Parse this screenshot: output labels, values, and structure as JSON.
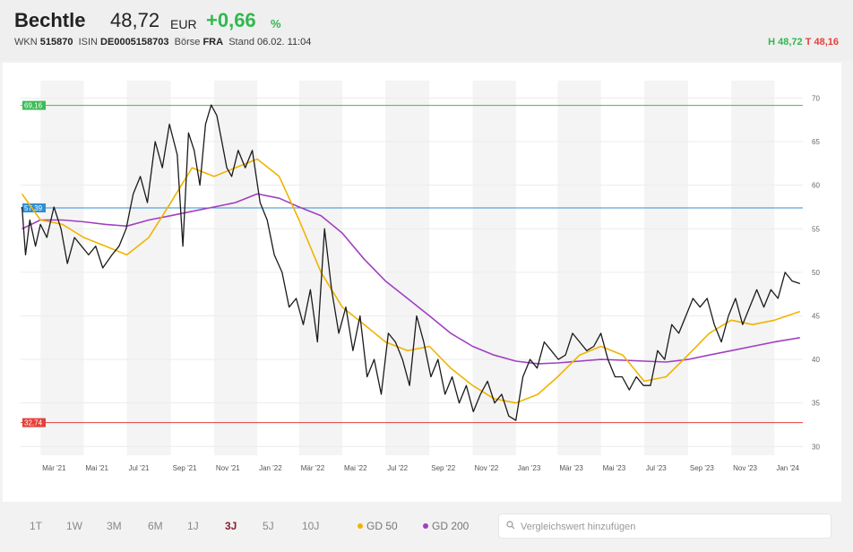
{
  "header": {
    "name": "Bechtle",
    "price": "48,72",
    "currency": "EUR",
    "change": "+0,66",
    "change_unit": "%",
    "wkn_label": "WKN",
    "wkn": "515870",
    "isin_label": "ISIN",
    "isin": "DE0005158703",
    "exchange_label": "Börse",
    "exchange": "FRA",
    "stand_label": "Stand",
    "stand": "06.02. 11:04",
    "high": "H 48,72",
    "low": "T 48,16",
    "colors": {
      "up": "#2fb84f",
      "down": "#e5403a"
    }
  },
  "toolbar": {
    "ranges": [
      "1T",
      "1W",
      "3M",
      "6M",
      "1J",
      "3J",
      "5J",
      "10J"
    ],
    "active_range": "3J",
    "gd50_label": "GD 50",
    "gd200_label": "GD 200",
    "compare_placeholder": "Vergleichswert hinzufügen",
    "search_icon": "search-icon"
  },
  "chart_data": {
    "type": "line",
    "x_tick_labels": [
      "Mär '21",
      "Mai '21",
      "Jul '21",
      "Sep '21",
      "Nov '21",
      "Jan '22",
      "Mär '22",
      "Mai '22",
      "Jul '22",
      "Sep '22",
      "Nov '22",
      "Jan '23",
      "Mär '23",
      "Mai '23",
      "Jul '23",
      "Sep '23",
      "Nov '23",
      "Jan '24"
    ],
    "y_ticks": [
      30,
      35,
      40,
      45,
      50,
      55,
      60,
      65,
      70
    ],
    "ylim": [
      29,
      72
    ],
    "grid": true,
    "reference_lines": [
      {
        "label": "69,16",
        "value": 69.16,
        "color": "#3dbb55"
      },
      {
        "label": "57,39",
        "value": 57.39,
        "color": "#2f8fd6"
      },
      {
        "label": "32,74",
        "value": 32.74,
        "color": "#e5403a"
      }
    ],
    "series": [
      {
        "name": "Kurs",
        "color": "#1a1a1a",
        "x": [
          "2021-02-03",
          "2021-02-08",
          "2021-02-14",
          "2021-02-22",
          "2021-03-01",
          "2021-03-10",
          "2021-03-20",
          "2021-03-30",
          "2021-04-08",
          "2021-04-18",
          "2021-04-28",
          "2021-05-08",
          "2021-05-18",
          "2021-05-28",
          "2021-06-10",
          "2021-06-20",
          "2021-06-30",
          "2021-07-10",
          "2021-07-20",
          "2021-07-30",
          "2021-08-10",
          "2021-08-20",
          "2021-08-30",
          "2021-09-10",
          "2021-09-18",
          "2021-09-26",
          "2021-10-04",
          "2021-10-12",
          "2021-10-20",
          "2021-10-28",
          "2021-11-05",
          "2021-11-12",
          "2021-11-19",
          "2021-11-26",
          "2021-12-05",
          "2021-12-15",
          "2021-12-25",
          "2022-01-05",
          "2022-01-15",
          "2022-01-25",
          "2022-02-05",
          "2022-02-15",
          "2022-02-25",
          "2022-03-07",
          "2022-03-17",
          "2022-03-27",
          "2022-04-06",
          "2022-04-16",
          "2022-04-26",
          "2022-05-06",
          "2022-05-16",
          "2022-05-26",
          "2022-06-05",
          "2022-06-15",
          "2022-06-25",
          "2022-07-05",
          "2022-07-15",
          "2022-07-25",
          "2022-08-04",
          "2022-08-14",
          "2022-08-24",
          "2022-09-03",
          "2022-09-13",
          "2022-09-23",
          "2022-10-03",
          "2022-10-13",
          "2022-10-23",
          "2022-11-02",
          "2022-11-12",
          "2022-11-22",
          "2022-12-02",
          "2022-12-12",
          "2022-12-22",
          "2023-01-01",
          "2023-01-11",
          "2023-01-21",
          "2023-01-31",
          "2023-02-10",
          "2023-02-20",
          "2023-03-02",
          "2023-03-12",
          "2023-03-22",
          "2023-04-01",
          "2023-04-11",
          "2023-04-21",
          "2023-05-01",
          "2023-05-11",
          "2023-05-21",
          "2023-05-31",
          "2023-06-10",
          "2023-06-20",
          "2023-06-30",
          "2023-07-10",
          "2023-07-20",
          "2023-07-30",
          "2023-08-09",
          "2023-08-19",
          "2023-08-29",
          "2023-09-08",
          "2023-09-18",
          "2023-09-28",
          "2023-10-08",
          "2023-10-18",
          "2023-10-28",
          "2023-11-07",
          "2023-11-17",
          "2023-11-27",
          "2023-12-07",
          "2023-12-17",
          "2023-12-27",
          "2024-01-06",
          "2024-01-16",
          "2024-01-26",
          "2024-02-06"
        ],
        "y": [
          57.5,
          52,
          56,
          53,
          55.5,
          54,
          57.5,
          55,
          51,
          54,
          53,
          52,
          53,
          50.5,
          52,
          53,
          55,
          59,
          61,
          58,
          65,
          62,
          67,
          63.5,
          53,
          66,
          64,
          60,
          67,
          69.2,
          68,
          65,
          62,
          61,
          64,
          62,
          64,
          58,
          56,
          52,
          50,
          46,
          47,
          44,
          48,
          42,
          55,
          48,
          43,
          46,
          41,
          45,
          38,
          40,
          36,
          43,
          42,
          40,
          37,
          45,
          42,
          38,
          40,
          36,
          38,
          35,
          37,
          34,
          36,
          37.5,
          35,
          36,
          33.5,
          33,
          38,
          40,
          39,
          42,
          41,
          40,
          40.5,
          43,
          42,
          41,
          41.5,
          43,
          40,
          38,
          38,
          36.5,
          38,
          37,
          37,
          41,
          40,
          44,
          43,
          45,
          47,
          46,
          47,
          44,
          42,
          45,
          47,
          44,
          46,
          48,
          46,
          48,
          47,
          50,
          49,
          48.7
        ]
      },
      {
        "name": "GD 50",
        "color": "#f0b400",
        "x": [
          "2021-02-03",
          "2021-03-01",
          "2021-04-01",
          "2021-05-01",
          "2021-06-01",
          "2021-07-01",
          "2021-08-01",
          "2021-09-01",
          "2021-10-01",
          "2021-11-01",
          "2021-12-01",
          "2022-01-01",
          "2022-02-01",
          "2022-03-01",
          "2022-04-01",
          "2022-05-01",
          "2022-06-01",
          "2022-07-01",
          "2022-08-01",
          "2022-09-01",
          "2022-10-01",
          "2022-11-01",
          "2022-12-01",
          "2023-01-01",
          "2023-02-01",
          "2023-03-01",
          "2023-04-01",
          "2023-05-01",
          "2023-06-01",
          "2023-07-01",
          "2023-08-01",
          "2023-09-01",
          "2023-10-01",
          "2023-11-01",
          "2023-12-01",
          "2024-01-01",
          "2024-02-06"
        ],
        "y": [
          59,
          56,
          55.5,
          54,
          53,
          52,
          54,
          58,
          62,
          61,
          62,
          63,
          61,
          56,
          50,
          46,
          44,
          42,
          41,
          41.5,
          39,
          37,
          35.5,
          35,
          36,
          38,
          40.5,
          41.5,
          40.5,
          37.5,
          38,
          40.5,
          43,
          44.5,
          44,
          44.5,
          45.5
        ]
      },
      {
        "name": "GD 200",
        "color": "#a040c0",
        "x": [
          "2021-02-03",
          "2021-03-01",
          "2021-04-01",
          "2021-05-01",
          "2021-06-01",
          "2021-07-01",
          "2021-08-01",
          "2021-09-01",
          "2021-10-01",
          "2021-11-01",
          "2021-12-01",
          "2022-01-01",
          "2022-02-01",
          "2022-03-01",
          "2022-04-01",
          "2022-05-01",
          "2022-06-01",
          "2022-07-01",
          "2022-08-01",
          "2022-09-01",
          "2022-10-01",
          "2022-11-01",
          "2022-12-01",
          "2023-01-01",
          "2023-02-01",
          "2023-03-01",
          "2023-04-01",
          "2023-05-01",
          "2023-06-01",
          "2023-07-01",
          "2023-08-01",
          "2023-09-01",
          "2023-10-01",
          "2023-11-01",
          "2023-12-01",
          "2024-01-01",
          "2024-02-06"
        ],
        "y": [
          55,
          56,
          56,
          55.8,
          55.5,
          55.3,
          56,
          56.5,
          57,
          57.5,
          58,
          59,
          58.5,
          57.5,
          56.5,
          54.5,
          51.5,
          49,
          47,
          45,
          43,
          41.5,
          40.5,
          39.8,
          39.5,
          39.6,
          39.8,
          40,
          39.9,
          39.8,
          39.7,
          40,
          40.5,
          41,
          41.5,
          42,
          42.5
        ]
      }
    ]
  }
}
